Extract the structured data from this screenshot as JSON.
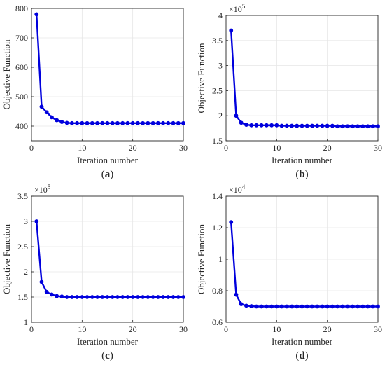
{
  "chart_data": [
    {
      "type": "line",
      "panel_label": "a",
      "xlabel": "Iteration number",
      "ylabel": "Objective Function",
      "xlim": [
        0,
        30
      ],
      "ylim": [
        350,
        800
      ],
      "xticks": [
        "0",
        "10",
        "20",
        "30"
      ],
      "yticks": [
        "400",
        "500",
        "600",
        "700",
        "800"
      ],
      "ytick_values": [
        400,
        500,
        600,
        700,
        800
      ],
      "multiplier_base": "",
      "multiplier_exp": "",
      "grid": true,
      "color": "#0000dd",
      "x": [
        1,
        2,
        3,
        4,
        5,
        6,
        7,
        8,
        9,
        10,
        11,
        12,
        13,
        14,
        15,
        16,
        17,
        18,
        19,
        20,
        21,
        22,
        23,
        24,
        25,
        26,
        27,
        28,
        29,
        30
      ],
      "y": [
        780,
        466,
        447,
        430,
        420,
        414,
        411,
        410,
        410,
        410,
        410,
        410,
        410,
        410,
        410,
        410,
        410,
        410,
        410,
        410,
        410,
        410,
        410,
        410,
        410,
        410,
        410,
        410,
        410,
        410
      ]
    },
    {
      "type": "line",
      "panel_label": "b",
      "xlabel": "Iteration number",
      "ylabel": "Objective Function",
      "xlim": [
        0,
        30
      ],
      "ylim": [
        1.5,
        4
      ],
      "xticks": [
        "0",
        "10",
        "20",
        "30"
      ],
      "yticks": [
        "1.5",
        "2",
        "2.5",
        "3",
        "3.5",
        "4"
      ],
      "ytick_values": [
        1.5,
        2,
        2.5,
        3,
        3.5,
        4
      ],
      "multiplier_base": "×10",
      "multiplier_exp": "5",
      "grid": true,
      "color": "#0000dd",
      "x": [
        1,
        2,
        3,
        4,
        5,
        6,
        7,
        8,
        9,
        10,
        11,
        12,
        13,
        14,
        15,
        16,
        17,
        18,
        19,
        20,
        21,
        22,
        23,
        24,
        25,
        26,
        27,
        28,
        29,
        30
      ],
      "y": [
        3.7,
        2.0,
        1.86,
        1.82,
        1.81,
        1.81,
        1.81,
        1.81,
        1.81,
        1.81,
        1.8,
        1.8,
        1.8,
        1.8,
        1.8,
        1.8,
        1.8,
        1.8,
        1.8,
        1.8,
        1.8,
        1.79,
        1.79,
        1.79,
        1.79,
        1.79,
        1.79,
        1.79,
        1.79,
        1.79
      ]
    },
    {
      "type": "line",
      "panel_label": "c",
      "xlabel": "Iteration number",
      "ylabel": "Objective Function",
      "xlim": [
        0,
        30
      ],
      "ylim": [
        1,
        3.5
      ],
      "xticks": [
        "0",
        "10",
        "20",
        "30"
      ],
      "yticks": [
        "1",
        "1.5",
        "2",
        "2.5",
        "3",
        "3.5"
      ],
      "ytick_values": [
        1,
        1.5,
        2,
        2.5,
        3,
        3.5
      ],
      "multiplier_base": "×10",
      "multiplier_exp": "5",
      "grid": true,
      "color": "#0000dd",
      "x": [
        1,
        2,
        3,
        4,
        5,
        6,
        7,
        8,
        9,
        10,
        11,
        12,
        13,
        14,
        15,
        16,
        17,
        18,
        19,
        20,
        21,
        22,
        23,
        24,
        25,
        26,
        27,
        28,
        29,
        30
      ],
      "y": [
        3.0,
        1.8,
        1.6,
        1.55,
        1.52,
        1.51,
        1.5,
        1.5,
        1.5,
        1.5,
        1.5,
        1.5,
        1.5,
        1.5,
        1.5,
        1.5,
        1.5,
        1.5,
        1.5,
        1.5,
        1.5,
        1.5,
        1.5,
        1.5,
        1.5,
        1.5,
        1.5,
        1.5,
        1.5,
        1.5
      ]
    },
    {
      "type": "line",
      "panel_label": "d",
      "xlabel": "Iteration number",
      "ylabel": "Objective Function",
      "xlim": [
        0,
        30
      ],
      "ylim": [
        0.6,
        1.4
      ],
      "xticks": [
        "0",
        "10",
        "20",
        "30"
      ],
      "yticks": [
        "0.6",
        "0.8",
        "1",
        "1.2",
        "1.4"
      ],
      "ytick_values": [
        0.6,
        0.8,
        1,
        1.2,
        1.4
      ],
      "multiplier_base": "×10",
      "multiplier_exp": "4",
      "grid": true,
      "color": "#0000dd",
      "x": [
        1,
        2,
        3,
        4,
        5,
        6,
        7,
        8,
        9,
        10,
        11,
        12,
        13,
        14,
        15,
        16,
        17,
        18,
        19,
        20,
        21,
        22,
        23,
        24,
        25,
        26,
        27,
        28,
        29,
        30
      ],
      "y": [
        1.235,
        0.775,
        0.715,
        0.705,
        0.702,
        0.7,
        0.7,
        0.7,
        0.7,
        0.7,
        0.7,
        0.7,
        0.7,
        0.7,
        0.7,
        0.7,
        0.7,
        0.7,
        0.7,
        0.7,
        0.7,
        0.7,
        0.7,
        0.7,
        0.7,
        0.7,
        0.7,
        0.7,
        0.7,
        0.7
      ]
    }
  ]
}
